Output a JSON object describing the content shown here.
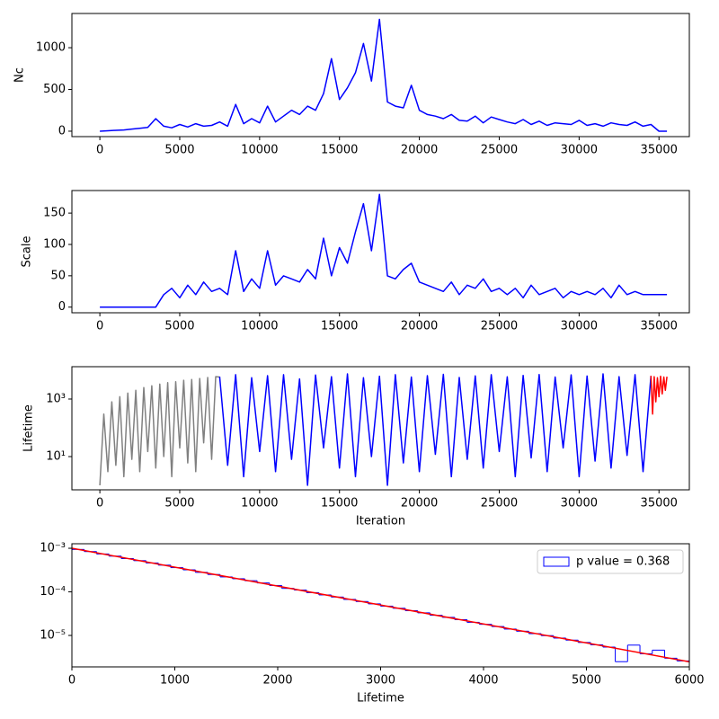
{
  "chart_data": [
    {
      "type": "line",
      "ylabel": "Nc",
      "xlim": [
        -1750,
        36900
      ],
      "xticks": [
        0,
        5000,
        10000,
        15000,
        20000,
        25000,
        30000,
        35000
      ],
      "ylim": [
        -65,
        1410
      ],
      "yticks": [
        0,
        500,
        1000
      ],
      "series": [
        {
          "color": "blue",
          "x": [
            0,
            500,
            1000,
            1500,
            2000,
            2500,
            3000,
            3500,
            4000,
            4500,
            5000,
            5500,
            6000,
            6500,
            7000,
            7500,
            8000,
            8500,
            9000,
            9500,
            10000,
            10500,
            11000,
            11500,
            12000,
            12500,
            13000,
            13500,
            14000,
            14500,
            15000,
            15500,
            16000,
            16500,
            17000,
            17500,
            18000,
            18500,
            19000,
            19500,
            20000,
            20500,
            21000,
            21500,
            22000,
            22500,
            23000,
            23500,
            24000,
            24500,
            25000,
            25500,
            26000,
            26500,
            27000,
            27500,
            28000,
            28500,
            29000,
            29500,
            30000,
            30500,
            31000,
            31500,
            32000,
            32500,
            33000,
            33500,
            34000,
            34500,
            35000,
            35500
          ],
          "values": [
            0,
            5,
            10,
            15,
            25,
            35,
            45,
            150,
            60,
            40,
            80,
            50,
            90,
            60,
            70,
            110,
            60,
            320,
            90,
            150,
            100,
            300,
            110,
            180,
            250,
            200,
            300,
            250,
            450,
            870,
            380,
            520,
            700,
            1050,
            600,
            1340,
            350,
            300,
            280,
            550,
            250,
            200,
            180,
            150,
            200,
            130,
            120,
            180,
            100,
            170,
            140,
            110,
            90,
            140,
            80,
            120,
            70,
            100,
            90,
            80,
            130,
            70,
            90,
            60,
            100,
            80,
            70,
            110,
            60,
            80,
            0,
            0
          ]
        }
      ]
    },
    {
      "type": "line",
      "ylabel": "Scale",
      "xlim": [
        -1750,
        36900
      ],
      "xticks": [
        0,
        5000,
        10000,
        15000,
        20000,
        25000,
        30000,
        35000
      ],
      "ylim": [
        -9,
        186
      ],
      "yticks": [
        0,
        50,
        100,
        150
      ],
      "series": [
        {
          "color": "blue",
          "x": [
            0,
            500,
            1000,
            1500,
            2000,
            2500,
            3000,
            3500,
            4000,
            4500,
            5000,
            5500,
            6000,
            6500,
            7000,
            7500,
            8000,
            8500,
            9000,
            9500,
            10000,
            10500,
            11000,
            11500,
            12000,
            12500,
            13000,
            13500,
            14000,
            14500,
            15000,
            15500,
            16000,
            16500,
            17000,
            17500,
            18000,
            18500,
            19000,
            19500,
            20000,
            20500,
            21000,
            21500,
            22000,
            22500,
            23000,
            23500,
            24000,
            24500,
            25000,
            25500,
            26000,
            26500,
            27000,
            27500,
            28000,
            28500,
            29000,
            29500,
            30000,
            30500,
            31000,
            31500,
            32000,
            32500,
            33000,
            33500,
            34000,
            34500,
            35000,
            35500
          ],
          "values": [
            0,
            0,
            0,
            0,
            0,
            0,
            0,
            0,
            20,
            30,
            15,
            35,
            20,
            40,
            25,
            30,
            20,
            90,
            25,
            45,
            30,
            90,
            35,
            50,
            45,
            40,
            60,
            45,
            110,
            50,
            95,
            70,
            120,
            165,
            90,
            180,
            50,
            45,
            60,
            70,
            40,
            35,
            30,
            25,
            40,
            20,
            35,
            30,
            45,
            25,
            30,
            20,
            30,
            15,
            35,
            20,
            25,
            30,
            15,
            25,
            20,
            25,
            20,
            30,
            15,
            35,
            20,
            25,
            20,
            20,
            20,
            20
          ]
        }
      ]
    },
    {
      "type": "line",
      "ylabel": "Lifetime",
      "xlabel": "Iteration",
      "ylog": true,
      "xlim": [
        -1750,
        36900
      ],
      "xticks": [
        0,
        5000,
        10000,
        15000,
        20000,
        25000,
        30000,
        35000
      ],
      "ylim": [
        0.7,
        13300
      ],
      "yticks": [
        {
          "value": 10,
          "label": "10¹"
        },
        {
          "value": 1000,
          "label": "10³"
        }
      ],
      "series": [
        {
          "color": "gray",
          "x": [
            0,
            250,
            500,
            750,
            1000,
            1250,
            1500,
            1750,
            2000,
            2250,
            2500,
            2750,
            3000,
            3250,
            3500,
            3750,
            4000,
            4250,
            4500,
            4750,
            5000,
            5250,
            5500,
            5750,
            6000,
            6250,
            6500,
            6750,
            7000,
            7250,
            7500
          ],
          "values": [
            1,
            300,
            3,
            800,
            5,
            1200,
            2,
            1600,
            8,
            2000,
            3,
            2500,
            15,
            2900,
            4,
            3300,
            10,
            3700,
            2,
            4000,
            20,
            4500,
            6,
            4800,
            3,
            5200,
            30,
            5600,
            8,
            6000,
            5800
          ]
        },
        {
          "color": "blue",
          "x": [
            7500,
            8000,
            8500,
            9000,
            9500,
            10000,
            10500,
            11000,
            11500,
            12000,
            12500,
            13000,
            13500,
            14000,
            14500,
            15000,
            15500,
            16000,
            16500,
            17000,
            17500,
            18000,
            18500,
            19000,
            19500,
            20000,
            20500,
            21000,
            21500,
            22000,
            22500,
            23000,
            23500,
            24000,
            24500,
            25000,
            25500,
            26000,
            26500,
            27000,
            27500,
            28000,
            28500,
            29000,
            29500,
            30000,
            30500,
            31000,
            31500,
            32000,
            32500,
            33000,
            33500,
            34000,
            34500
          ],
          "values": [
            6000,
            5,
            7000,
            2,
            5500,
            15,
            6500,
            3,
            7000,
            8,
            5000,
            1,
            6800,
            20,
            6000,
            4,
            7500,
            2,
            5500,
            10,
            6200,
            1,
            7000,
            6,
            5800,
            3,
            6500,
            12,
            7200,
            2,
            5600,
            8,
            6400,
            4,
            7000,
            15,
            5900,
            2,
            6600,
            9,
            7100,
            3,
            5800,
            20,
            6900,
            2,
            6300,
            7,
            7500,
            4,
            6000,
            11,
            7000,
            3,
            6500
          ]
        },
        {
          "color": "red",
          "x": [
            34500,
            34600,
            34700,
            34800,
            34900,
            35000,
            35100,
            35200,
            35300,
            35400,
            35500
          ],
          "values": [
            6500,
            300,
            6000,
            800,
            5500,
            1200,
            6200,
            1500,
            5800,
            2000,
            6000
          ]
        }
      ]
    },
    {
      "type": "histogram",
      "xlabel": "Lifetime",
      "ylog": true,
      "xlim": [
        0,
        6000
      ],
      "xticks": [
        0,
        1000,
        2000,
        3000,
        4000,
        5000,
        6000
      ],
      "ylim": [
        1.9e-06,
        0.00127
      ],
      "yticks": [
        {
          "value": 0.001,
          "label": "10⁻³"
        },
        {
          "value": 0.0001,
          "label": "10⁻⁴"
        },
        {
          "value": 1e-05,
          "label": "10⁻⁵"
        }
      ],
      "color": "blue",
      "legend_label": "p value = 0.368",
      "legend": "upper right",
      "bins": [
        0,
        120,
        240,
        360,
        480,
        600,
        720,
        840,
        960,
        1080,
        1200,
        1320,
        1440,
        1560,
        1680,
        1800,
        1920,
        2040,
        2160,
        2280,
        2400,
        2520,
        2640,
        2760,
        2880,
        3000,
        3120,
        3240,
        3360,
        3480,
        3600,
        3720,
        3840,
        3960,
        4080,
        4200,
        4320,
        4440,
        4560,
        4680,
        4800,
        4920,
        5040,
        5160,
        5280,
        5400,
        5520,
        5640,
        5760,
        5880,
        6000
      ],
      "values": [
        0.00094,
        0.00084,
        0.00074,
        0.00066,
        0.00058,
        0.00052,
        0.00046,
        0.00041,
        0.00036,
        0.00032,
        0.00028,
        0.00025,
        0.00022,
        0.0002,
        0.00018,
        0.00016,
        0.00014,
        0.00012,
        0.00011,
        9.6e-05,
        8.5e-05,
        7.6e-05,
        6.7e-05,
        6e-05,
        5.3e-05,
        4.7e-05,
        4.2e-05,
        3.7e-05,
        3.3e-05,
        2.9e-05,
        2.6e-05,
        2.3e-05,
        2e-05,
        1.8e-05,
        1.6e-05,
        1.4e-05,
        1.25e-05,
        1.1e-05,
        9.9e-06,
        8.7e-06,
        7.8e-06,
        6.9e-06,
        6.1e-06,
        5.4e-06,
        2.5e-06,
        6e-06,
        3.8e-06,
        4.6e-06,
        3e-06,
        2.6e-06
      ],
      "fit": {
        "color": "red",
        "x": [
          0,
          6000
        ],
        "values": [
          0.001,
          2.48e-06
        ]
      }
    }
  ]
}
